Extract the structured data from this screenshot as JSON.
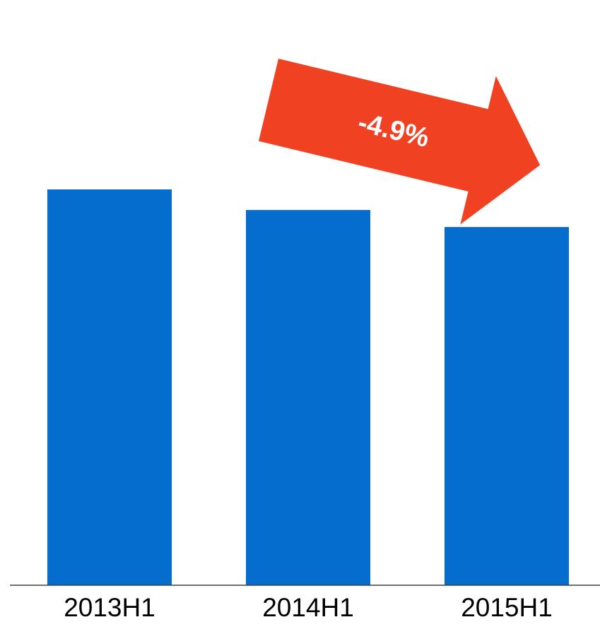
{
  "chart_data": {
    "type": "bar",
    "categories": [
      "2013H1",
      "2014H1",
      "2015H1"
    ],
    "values": [
      100,
      94.8,
      90.5
    ],
    "title": "",
    "xlabel": "",
    "ylabel": "",
    "ylim": [
      0,
      100
    ],
    "grid": false,
    "legend": "none",
    "bar_color": "#046DCD",
    "annotation": {
      "text": "-4.9%",
      "shape": "arrow-down-right",
      "color": "#F04123"
    }
  }
}
